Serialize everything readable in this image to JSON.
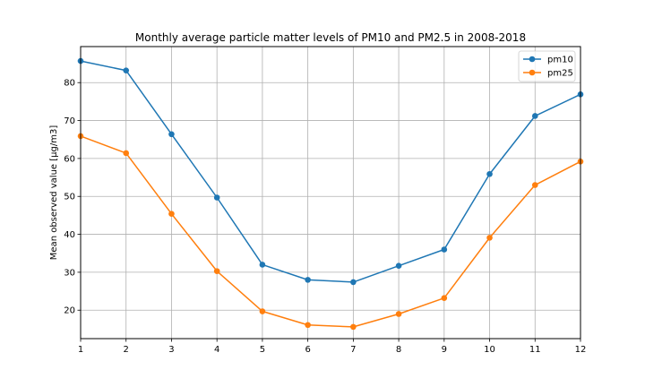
{
  "chart_data": {
    "type": "line",
    "title": "Monthly average particle matter levels of PM10 and PM2.5 in 2008-2018",
    "xlabel": "",
    "ylabel": "Mean observed value [µg/m3]",
    "x": [
      1,
      2,
      3,
      4,
      5,
      6,
      7,
      8,
      9,
      10,
      11,
      12
    ],
    "xlim": [
      1,
      12
    ],
    "ylim": [
      12.5,
      89.5
    ],
    "xticks": [
      1,
      2,
      3,
      4,
      5,
      6,
      7,
      8,
      9,
      10,
      11,
      12
    ],
    "yticks": [
      20,
      30,
      40,
      50,
      60,
      70,
      80
    ],
    "grid": true,
    "legend_position": "top-right",
    "series": [
      {
        "name": "pm10",
        "color": "#1f77b4",
        "values": [
          85.7,
          83.2,
          66.4,
          49.7,
          32.0,
          28.0,
          27.4,
          31.7,
          36.0,
          55.9,
          71.2,
          76.9
        ]
      },
      {
        "name": "pm25",
        "color": "#ff7f0e",
        "values": [
          65.9,
          61.4,
          45.4,
          30.3,
          19.7,
          16.1,
          15.6,
          19.0,
          23.2,
          39.1,
          53.0,
          59.2
        ]
      }
    ]
  }
}
